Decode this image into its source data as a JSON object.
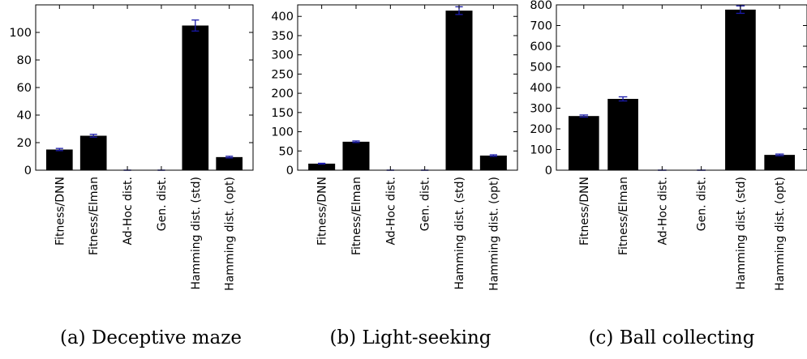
{
  "chart_data": [
    {
      "type": "bar",
      "caption": "(a) Deceptive maze",
      "categories": [
        "Fitness/DNN",
        "Fitness/Elman",
        "Ad-Hoc dist.",
        "Gen. dist.",
        "Hamming dist. (std)",
        "Hamming dist. (opt)"
      ],
      "values": [
        15,
        25,
        0,
        0,
        105,
        9.5
      ],
      "errors": [
        0.8,
        1.0,
        0,
        0,
        4,
        0.6
      ],
      "ylim": [
        0,
        120
      ],
      "yticks": [
        0,
        20,
        40,
        60,
        80,
        100
      ],
      "ytick_labels": [
        "0",
        "20",
        "40",
        "60",
        "80",
        "100"
      ]
    },
    {
      "type": "bar",
      "caption": "(b) Light-seeking",
      "categories": [
        "Fitness/DNN",
        "Fitness/Elman",
        "Ad-Hoc dist.",
        "Gen. dist.",
        "Hamming dist. (std)",
        "Hamming dist. (opt)"
      ],
      "values": [
        17,
        74,
        0,
        0,
        415,
        38
      ],
      "errors": [
        1,
        2,
        0,
        0,
        10,
        2
      ],
      "ylim": [
        0,
        430
      ],
      "yticks": [
        0,
        50,
        100,
        150,
        200,
        250,
        300,
        350,
        400
      ],
      "ytick_labels": [
        "0",
        "50",
        "100",
        "150",
        "200",
        "250",
        "300",
        "350",
        "400"
      ]
    },
    {
      "type": "bar",
      "caption": "(c) Ball collecting",
      "categories": [
        "Fitness/DNN",
        "Fitness/Elman",
        "Ad-Hoc dist.",
        "Gen. dist.",
        "Hamming dist. (std)",
        "Hamming dist. (opt)"
      ],
      "values": [
        262,
        345,
        0,
        0,
        777,
        74
      ],
      "errors": [
        5,
        10,
        0,
        0,
        18,
        4
      ],
      "ylim": [
        0,
        800
      ],
      "yticks": [
        0,
        100,
        200,
        300,
        400,
        500,
        600,
        700,
        800
      ],
      "ytick_labels": [
        "0",
        "100",
        "200",
        "300",
        "400",
        "500",
        "600",
        "700",
        "800"
      ]
    }
  ],
  "colors": {
    "bar": "#000000",
    "error": "#1a1aaa",
    "axis": "#000000"
  }
}
